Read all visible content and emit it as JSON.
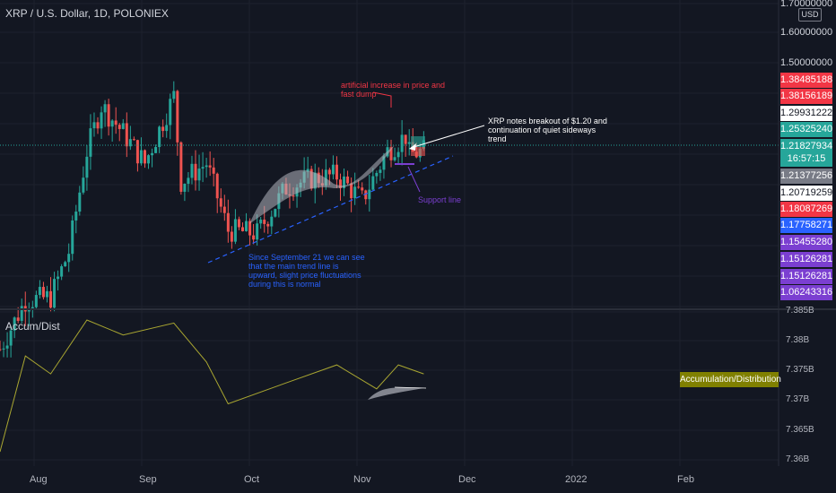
{
  "header": {
    "title": "XRP / U.S. Dollar, 1D, POLONIEX",
    "currency": "USD"
  },
  "price_axis": {
    "labels": [
      "1.70000000",
      "1.60000000",
      "1.50000000"
    ]
  },
  "badges": [
    {
      "text": "1.38485188",
      "color": "#f23645",
      "text_color": "#ffffff"
    },
    {
      "text": "1.38156189",
      "color": "#f23645",
      "text_color": "#ffffff"
    },
    {
      "text": "1.29931222",
      "color": "#ffffff",
      "text_color": "#131722"
    },
    {
      "text": "1.25325240",
      "color": "#26a69a",
      "text_color": "#ffffff"
    },
    {
      "text": "1.21827934",
      "color": "#26a69a",
      "text_color": "#ffffff"
    },
    {
      "text": "16:57:15",
      "color": "#26a69a",
      "text_color": "#ffffff"
    },
    {
      "text": "1.21377256",
      "color": "#787b86",
      "text_color": "#ffffff"
    },
    {
      "text": "1.20719259",
      "color": "#ffffff",
      "text_color": "#131722"
    },
    {
      "text": "1.18087269",
      "color": "#f23645",
      "text_color": "#ffffff"
    },
    {
      "text": "1.17758271",
      "color": "#2962ff",
      "text_color": "#ffffff"
    },
    {
      "text": "1.15455280",
      "color": "#7b3fd1",
      "text_color": "#ffffff"
    },
    {
      "text": "1.15126281",
      "color": "#7b3fd1",
      "text_color": "#ffffff"
    },
    {
      "text": "1.15126281",
      "color": "#7b3fd1",
      "text_color": "#ffffff"
    },
    {
      "text": "1.06243316",
      "color": "#7b3fd1",
      "text_color": "#ffffff"
    }
  ],
  "indicator": {
    "title": "Accum/Dist",
    "badge": "Accumulation/Distribution",
    "axis_labels": [
      "7.385B",
      "7.38B",
      "7.375B",
      "7.37B",
      "7.365B",
      "7.36B"
    ]
  },
  "time_axis": {
    "labels": [
      "Aug",
      "Sep",
      "Oct",
      "Nov",
      "Dec",
      "2022",
      "Feb"
    ]
  },
  "annotations": {
    "top": [
      "artificial increase in price and",
      "fast dump"
    ],
    "right": [
      "XRP notes breakout of $1.20 and",
      "continuation of quiet sideways",
      "trend"
    ],
    "support": "Support line",
    "blue": [
      "Since September 21 we can see",
      "that the main trend line is",
      "upward, slight price fluctuations",
      "during this is normal"
    ]
  },
  "colors": {
    "up": "#26a69a",
    "down": "#ef5350",
    "ad_line": "#a9a631",
    "trend": "#2962ff",
    "support": "#7b3fd1"
  },
  "chart_data": {
    "type": "candlestick",
    "title": "XRP / U.S. Dollar, 1D, POLONIEX",
    "x_range": [
      "2021-07-20",
      "2022-02-20"
    ],
    "y_range": [
      1.0,
      1.7
    ],
    "price_points": [
      {
        "date": "2021-07-20",
        "close": 0.56
      },
      {
        "date": "2021-07-27",
        "close": 0.72
      },
      {
        "date": "2021-08-03",
        "close": 0.73
      },
      {
        "date": "2021-08-08",
        "close": 0.88
      },
      {
        "date": "2021-08-13",
        "close": 1.21
      },
      {
        "date": "2021-08-17",
        "close": 1.36
      },
      {
        "date": "2021-08-23",
        "close": 1.27
      },
      {
        "date": "2021-08-29",
        "close": 1.17
      },
      {
        "date": "2021-09-06",
        "close": 1.39
      },
      {
        "date": "2021-09-08",
        "close": 1.11
      },
      {
        "date": "2021-09-15",
        "close": 1.17
      },
      {
        "date": "2021-09-21",
        "close": 0.95
      },
      {
        "date": "2021-09-29",
        "close": 0.94
      },
      {
        "date": "2021-10-07",
        "close": 1.09
      },
      {
        "date": "2021-10-14",
        "close": 1.12
      },
      {
        "date": "2021-10-21",
        "close": 1.13
      },
      {
        "date": "2021-10-28",
        "close": 1.05
      },
      {
        "date": "2021-11-04",
        "close": 1.21
      },
      {
        "date": "2021-11-09",
        "close": 1.26
      },
      {
        "date": "2021-11-10",
        "close": 1.2
      },
      {
        "date": "2021-11-14",
        "close": 1.21
      }
    ],
    "ad_points": [
      {
        "date": "2021-07-20",
        "value": 7.3615
      },
      {
        "date": "2021-07-27",
        "value": 7.3775
      },
      {
        "date": "2021-08-03",
        "value": 7.3745
      },
      {
        "date": "2021-08-13",
        "value": 7.3835
      },
      {
        "date": "2021-08-23",
        "value": 7.381
      },
      {
        "date": "2021-09-06",
        "value": 7.383
      },
      {
        "date": "2021-09-15",
        "value": 7.3765
      },
      {
        "date": "2021-09-21",
        "value": 7.3695
      },
      {
        "date": "2021-10-07",
        "value": 7.373
      },
      {
        "date": "2021-10-21",
        "value": 7.376
      },
      {
        "date": "2021-11-01",
        "value": 7.372
      },
      {
        "date": "2021-11-07",
        "value": 7.376
      },
      {
        "date": "2021-11-14",
        "value": 7.3745
      }
    ],
    "ad_range": [
      7.36,
      7.385
    ],
    "series": [
      {
        "name": "Accum/Dist"
      }
    ]
  }
}
